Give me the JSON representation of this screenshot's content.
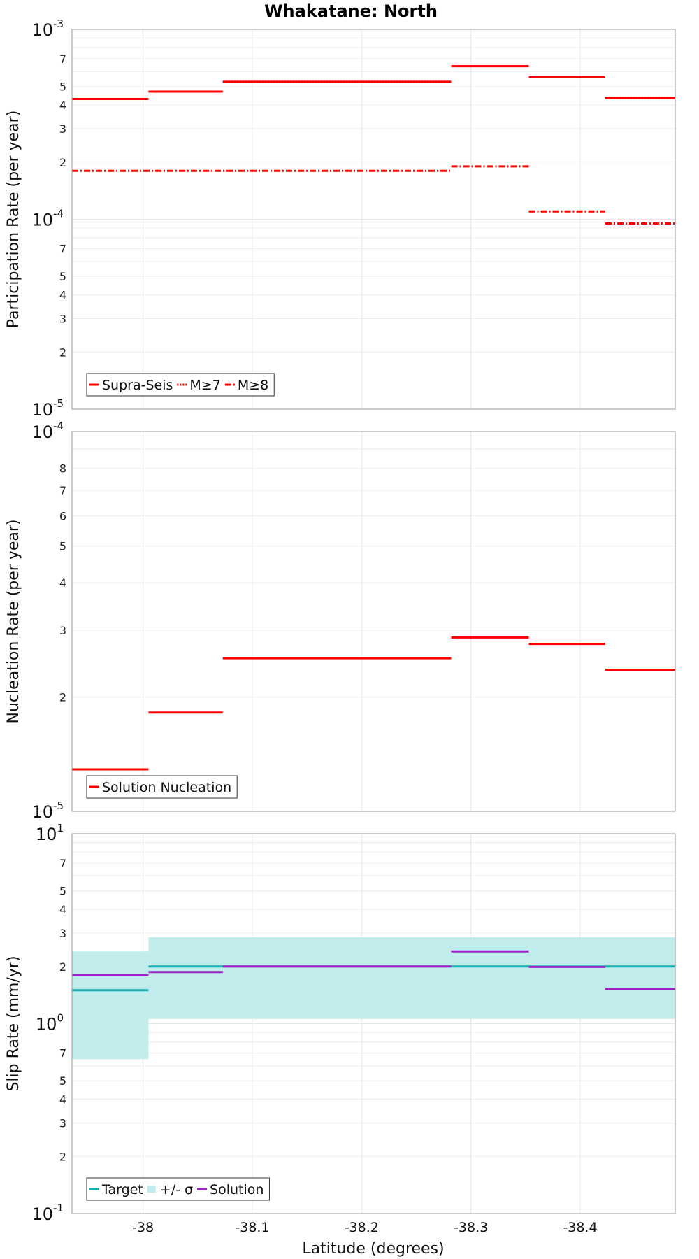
{
  "chart_data": {
    "title": "Whakatane: North",
    "x": {
      "label": "Latitude (degrees)",
      "range": [
        -37.935,
        -38.487
      ],
      "ticks": [
        -38,
        -38.1,
        -38.2,
        -38.3,
        -38.4
      ],
      "tick_labels": [
        "-38",
        "-38.1",
        "-38.2",
        "-38.3",
        "-38.4"
      ]
    },
    "panels": [
      {
        "id": "participation",
        "type": "line",
        "style": "step",
        "ylabel": "Participation Rate (per year)",
        "yscale": "log",
        "ylim": [
          1e-05,
          0.001
        ],
        "decades": [
          {
            "base": "10",
            "exp": "-5"
          },
          {
            "base": "10",
            "exp": "-4"
          },
          {
            "base": "10",
            "exp": "-3"
          }
        ],
        "minor_labels": [
          "2",
          "3",
          "4",
          "5",
          "7"
        ],
        "legend_position": "bottom-left",
        "series": [
          {
            "name": "Supra-Seis",
            "legend": true,
            "color": "#ff0000",
            "dash": "solid",
            "segments": [
              [
                -37.935,
                -38.005,
                0.00043
              ],
              [
                -38.005,
                -38.073,
                0.00047
              ],
              [
                -38.073,
                -38.282,
                0.00053
              ],
              [
                -38.282,
                -38.353,
                0.00064
              ],
              [
                -38.353,
                -38.423,
                0.00056
              ],
              [
                -38.423,
                -38.487,
                0.000435
              ]
            ]
          },
          {
            "name": "M≥7",
            "legend": true,
            "color": "#ff0000",
            "dash": "dotted",
            "segments": [
              [
                -37.935,
                -38.005,
                0.00043
              ],
              [
                -38.005,
                -38.073,
                0.00047
              ],
              [
                -38.073,
                -38.282,
                0.00053
              ],
              [
                -38.282,
                -38.353,
                0.00064
              ],
              [
                -38.353,
                -38.423,
                0.00056
              ],
              [
                -38.423,
                -38.487,
                0.000435
              ]
            ]
          },
          {
            "name": "M≥8",
            "legend": true,
            "color": "#ff0000",
            "dash": "dashdot",
            "segments": [
              [
                -37.935,
                -38.282,
                0.00018
              ],
              [
                -38.282,
                -38.353,
                0.00019
              ],
              [
                -38.353,
                -38.423,
                0.00011
              ],
              [
                -38.423,
                -38.487,
                9.5e-05
              ]
            ]
          }
        ]
      },
      {
        "id": "nucleation",
        "type": "line",
        "style": "step",
        "ylabel": "Nucleation Rate (per year)",
        "yscale": "log",
        "ylim": [
          1e-05,
          0.0001
        ],
        "decades": [
          {
            "base": "10",
            "exp": "-5"
          },
          {
            "base": "10",
            "exp": "-4"
          }
        ],
        "minor_labels": [
          "2",
          "3",
          "4",
          "5",
          "6",
          "7",
          "8"
        ],
        "legend_position": "bottom-left",
        "series": [
          {
            "name": "Solution Nucleation",
            "legend": true,
            "color": "#ff0000",
            "dash": "solid",
            "segments": [
              [
                -37.935,
                -38.005,
                1.29e-05
              ],
              [
                -38.005,
                -38.073,
                1.82e-05
              ],
              [
                -38.073,
                -38.282,
                2.53e-05
              ],
              [
                -38.282,
                -38.353,
                2.87e-05
              ],
              [
                -38.353,
                -38.423,
                2.76e-05
              ],
              [
                -38.423,
                -38.487,
                2.36e-05
              ]
            ]
          }
        ]
      },
      {
        "id": "slip",
        "type": "line",
        "style": "step",
        "ylabel": "Slip Rate (mm/yr)",
        "yscale": "log",
        "ylim": [
          0.1,
          10
        ],
        "decades": [
          {
            "base": "10",
            "exp": "-1"
          },
          {
            "base": "10",
            "exp": "0"
          },
          {
            "base": "10",
            "exp": "1"
          }
        ],
        "minor_labels": [
          "2",
          "3",
          "4",
          "5",
          "7"
        ],
        "legend_position": "bottom-left",
        "band": {
          "name": "+/- σ",
          "color": "#c1ecec",
          "segments": [
            [
              -37.935,
              -38.005,
              0.65,
              2.4
            ],
            [
              -38.005,
              -38.487,
              1.06,
              2.85
            ]
          ]
        },
        "series": [
          {
            "name": "Target",
            "legend": true,
            "color": "#1aafaf",
            "dash": "solid",
            "segments": [
              [
                -37.935,
                -38.005,
                1.5
              ],
              [
                -38.005,
                -38.487,
                2.0
              ]
            ]
          },
          {
            "name": "Solution",
            "legend": true,
            "color": "#a020c8",
            "dash": "solid",
            "segments": [
              [
                -37.935,
                -38.005,
                1.8
              ],
              [
                -38.005,
                -38.073,
                1.87
              ],
              [
                -38.073,
                -38.282,
                2.0
              ],
              [
                -38.282,
                -38.353,
                2.4
              ],
              [
                -38.353,
                -38.423,
                1.99
              ],
              [
                -38.423,
                -38.487,
                1.52
              ]
            ]
          }
        ]
      }
    ]
  }
}
